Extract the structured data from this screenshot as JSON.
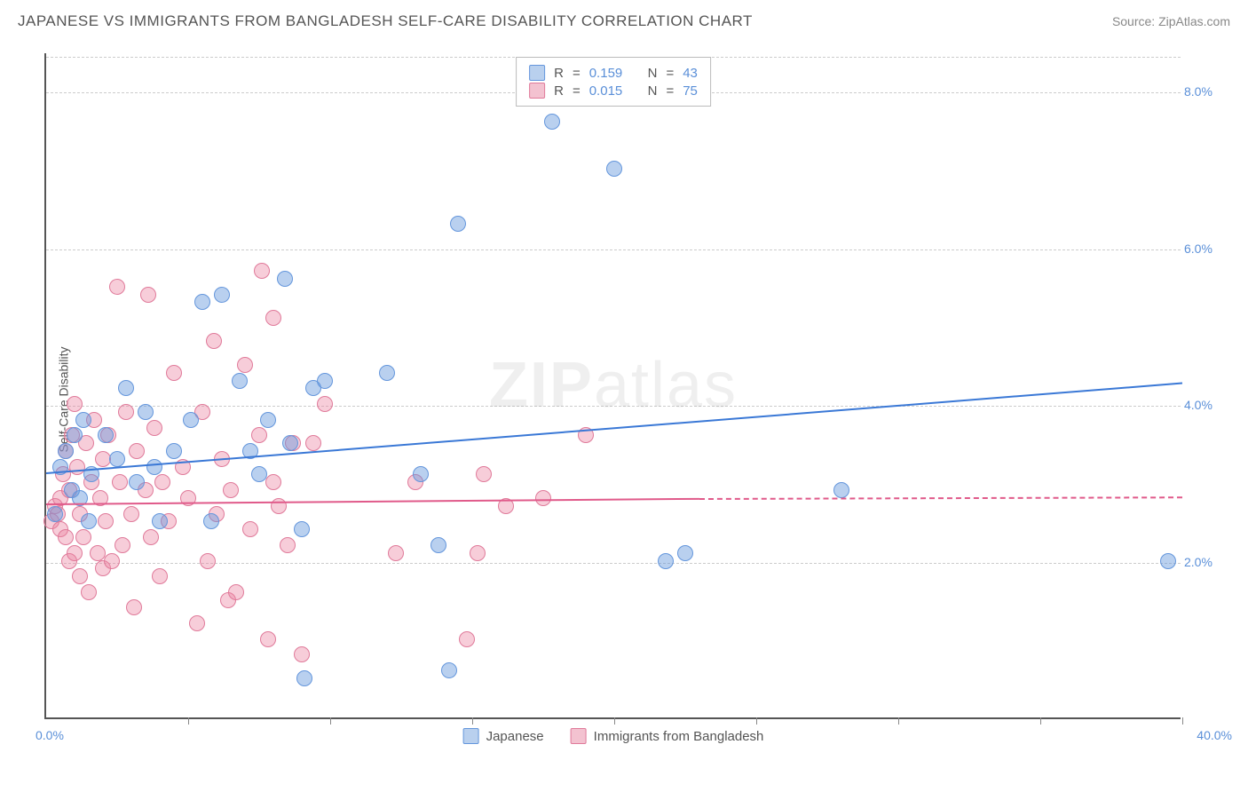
{
  "title": "JAPANESE VS IMMIGRANTS FROM BANGLADESH SELF-CARE DISABILITY CORRELATION CHART",
  "source_label": "Source:",
  "source_name": "ZipAtlas.com",
  "watermark": {
    "part1": "ZIP",
    "part2": "atlas"
  },
  "ylabel": "Self-Care Disability",
  "axis_color": "#555555",
  "tick_label_color": "#5a8fd8",
  "grid_color": "#cccccc",
  "background": "#ffffff",
  "xlim": [
    0,
    40
  ],
  "ylim": [
    0,
    8.5
  ],
  "x_origin_label": "0.0%",
  "x_max_label": "40.0%",
  "xticks": [
    0,
    5,
    10,
    15,
    20,
    25,
    30,
    35,
    40
  ],
  "yticks": [
    {
      "v": 2.0,
      "label": "2.0%"
    },
    {
      "v": 4.0,
      "label": "4.0%"
    },
    {
      "v": 6.0,
      "label": "6.0%"
    },
    {
      "v": 8.0,
      "label": "8.0%"
    }
  ],
  "legend_top": {
    "r_label": "R",
    "n_label": "N",
    "eq": "="
  },
  "series": [
    {
      "key": "japanese",
      "name": "Japanese",
      "color_fill": "rgba(100,150,220,0.45)",
      "color_stroke": "#6496dc",
      "swatch_fill": "#b9d0ee",
      "swatch_border": "#6496dc",
      "marker_radius": 9,
      "r": "0.159",
      "n": "43",
      "trend": {
        "x0": 0,
        "y0": 3.15,
        "x1": 40,
        "y1": 4.3,
        "color": "#3a78d6",
        "width": 2
      },
      "points": [
        [
          0.3,
          2.6
        ],
        [
          0.5,
          3.2
        ],
        [
          0.7,
          3.4
        ],
        [
          0.9,
          2.9
        ],
        [
          1.0,
          3.6
        ],
        [
          1.2,
          2.8
        ],
        [
          1.3,
          3.8
        ],
        [
          1.5,
          2.5
        ],
        [
          1.6,
          3.1
        ],
        [
          2.1,
          3.6
        ],
        [
          2.5,
          3.3
        ],
        [
          2.8,
          4.2
        ],
        [
          3.2,
          3.0
        ],
        [
          3.5,
          3.9
        ],
        [
          3.8,
          3.2
        ],
        [
          4.0,
          2.5
        ],
        [
          4.5,
          3.4
        ],
        [
          5.1,
          3.8
        ],
        [
          5.5,
          5.3
        ],
        [
          5.8,
          2.5
        ],
        [
          6.2,
          5.4
        ],
        [
          6.8,
          4.3
        ],
        [
          7.2,
          3.4
        ],
        [
          7.5,
          3.1
        ],
        [
          7.8,
          3.8
        ],
        [
          8.4,
          5.6
        ],
        [
          8.6,
          3.5
        ],
        [
          9.0,
          2.4
        ],
        [
          9.1,
          0.5
        ],
        [
          9.4,
          4.2
        ],
        [
          9.8,
          4.3
        ],
        [
          12.0,
          4.4
        ],
        [
          13.2,
          3.1
        ],
        [
          13.8,
          2.2
        ],
        [
          14.2,
          0.6
        ],
        [
          14.5,
          6.3
        ],
        [
          19.0,
          8.0
        ],
        [
          17.8,
          7.6
        ],
        [
          20.0,
          7.0
        ],
        [
          21.8,
          2.0
        ],
        [
          22.5,
          2.1
        ],
        [
          28.0,
          2.9
        ],
        [
          39.5,
          2.0
        ]
      ]
    },
    {
      "key": "bangladesh",
      "name": "Immigrants from Bangladesh",
      "color_fill": "rgba(235,130,160,0.40)",
      "color_stroke": "#e07a9a",
      "swatch_fill": "#f3c2d0",
      "swatch_border": "#e07a9a",
      "marker_radius": 9,
      "r": "0.015",
      "n": "75",
      "trend": {
        "x0": 0,
        "y0": 2.75,
        "x1": 23,
        "y1": 2.82,
        "color": "#e05a8a",
        "width": 2,
        "dash_ext_x1": 40,
        "dash_ext_y1": 2.84
      },
      "points": [
        [
          0.2,
          2.5
        ],
        [
          0.3,
          2.7
        ],
        [
          0.4,
          2.6
        ],
        [
          0.5,
          2.8
        ],
        [
          0.5,
          2.4
        ],
        [
          0.6,
          3.1
        ],
        [
          0.7,
          2.3
        ],
        [
          0.7,
          3.4
        ],
        [
          0.8,
          2.0
        ],
        [
          0.8,
          2.9
        ],
        [
          0.9,
          3.6
        ],
        [
          1.0,
          2.1
        ],
        [
          1.0,
          4.0
        ],
        [
          1.1,
          3.2
        ],
        [
          1.2,
          1.8
        ],
        [
          1.2,
          2.6
        ],
        [
          1.3,
          2.3
        ],
        [
          1.4,
          3.5
        ],
        [
          1.5,
          1.6
        ],
        [
          1.6,
          3.0
        ],
        [
          1.7,
          3.8
        ],
        [
          1.8,
          2.1
        ],
        [
          1.9,
          2.8
        ],
        [
          2.0,
          1.9
        ],
        [
          2.0,
          3.3
        ],
        [
          2.1,
          2.5
        ],
        [
          2.2,
          3.6
        ],
        [
          2.3,
          2.0
        ],
        [
          2.5,
          5.5
        ],
        [
          2.6,
          3.0
        ],
        [
          2.7,
          2.2
        ],
        [
          2.8,
          3.9
        ],
        [
          3.0,
          2.6
        ],
        [
          3.1,
          1.4
        ],
        [
          3.2,
          3.4
        ],
        [
          3.5,
          2.9
        ],
        [
          3.6,
          5.4
        ],
        [
          3.7,
          2.3
        ],
        [
          3.8,
          3.7
        ],
        [
          4.0,
          1.8
        ],
        [
          4.1,
          3.0
        ],
        [
          4.3,
          2.5
        ],
        [
          4.5,
          4.4
        ],
        [
          4.8,
          3.2
        ],
        [
          5.0,
          2.8
        ],
        [
          5.3,
          1.2
        ],
        [
          5.5,
          3.9
        ],
        [
          5.7,
          2.0
        ],
        [
          5.9,
          4.8
        ],
        [
          6.0,
          2.6
        ],
        [
          6.2,
          3.3
        ],
        [
          6.4,
          1.5
        ],
        [
          6.5,
          2.9
        ],
        [
          6.7,
          1.6
        ],
        [
          7.0,
          4.5
        ],
        [
          7.2,
          2.4
        ],
        [
          7.5,
          3.6
        ],
        [
          7.6,
          5.7
        ],
        [
          7.8,
          1.0
        ],
        [
          8.0,
          3.0
        ],
        [
          8.0,
          5.1
        ],
        [
          8.2,
          2.7
        ],
        [
          8.5,
          2.2
        ],
        [
          8.7,
          3.5
        ],
        [
          9.0,
          0.8
        ],
        [
          9.4,
          3.5
        ],
        [
          9.8,
          4.0
        ],
        [
          12.3,
          2.1
        ],
        [
          13.0,
          3.0
        ],
        [
          14.8,
          1.0
        ],
        [
          15.2,
          2.1
        ],
        [
          15.4,
          3.1
        ],
        [
          16.2,
          2.7
        ],
        [
          17.5,
          2.8
        ],
        [
          19.0,
          3.6
        ]
      ]
    }
  ],
  "legend_bottom": [
    {
      "series": "japanese"
    },
    {
      "series": "bangladesh"
    }
  ]
}
